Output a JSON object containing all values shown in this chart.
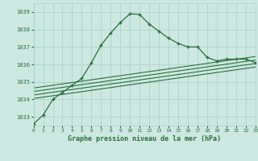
{
  "title": "Graphe pression niveau de la mer (hPa)",
  "bg_color": "#cce8e0",
  "grid_color": "#a8d0c8",
  "line_color": "#2d6e3e",
  "x_min": 0,
  "x_max": 23,
  "y_min": 1032.5,
  "y_max": 1039.5,
  "yticks": [
    1033,
    1034,
    1035,
    1036,
    1037,
    1038,
    1039
  ],
  "xticks": [
    0,
    1,
    2,
    3,
    4,
    5,
    6,
    7,
    8,
    9,
    10,
    11,
    12,
    13,
    14,
    15,
    16,
    17,
    18,
    19,
    20,
    21,
    22,
    23
  ],
  "main_x": [
    0,
    1,
    2,
    3,
    4,
    5,
    6,
    7,
    8,
    9,
    10,
    11,
    12,
    13,
    14,
    15,
    16,
    17,
    18,
    19,
    20,
    21,
    22,
    23
  ],
  "main_y": [
    1032.6,
    1033.1,
    1034.0,
    1034.4,
    1034.8,
    1035.2,
    1036.1,
    1037.1,
    1037.8,
    1038.4,
    1038.9,
    1038.85,
    1038.3,
    1037.9,
    1037.5,
    1037.2,
    1037.0,
    1037.0,
    1036.4,
    1036.2,
    1036.3,
    1036.3,
    1036.3,
    1036.1
  ],
  "ref_lines": [
    {
      "x": [
        0,
        23
      ],
      "y": [
        1034.05,
        1035.85
      ]
    },
    {
      "x": [
        0,
        23
      ],
      "y": [
        1034.25,
        1036.05
      ]
    },
    {
      "x": [
        0,
        23
      ],
      "y": [
        1034.45,
        1036.25
      ]
    },
    {
      "x": [
        0,
        23
      ],
      "y": [
        1034.65,
        1036.45
      ]
    }
  ]
}
